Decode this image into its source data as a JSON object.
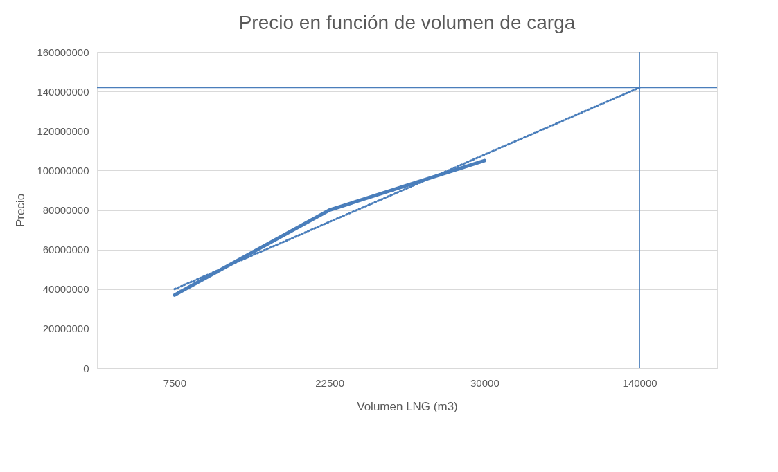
{
  "chart_data": {
    "type": "line",
    "title": "Precio en función de volumen de carga",
    "xlabel": "Volumen LNG (m3)",
    "ylabel": "Precio",
    "categories": [
      "7500",
      "22500",
      "30000",
      "140000"
    ],
    "series": [
      {
        "color": "#4a7ebb",
        "values": [
          37000000,
          80000000,
          105000000,
          null
        ],
        "line_style": "solid"
      },
      {
        "color": "#4a7ebb",
        "values": [
          40000000,
          74000000,
          108000000,
          142000000
        ],
        "line_style": "dotted"
      }
    ],
    "ylim": [
      0,
      160000000
    ],
    "yticks": [
      0,
      20000000,
      40000000,
      60000000,
      80000000,
      100000000,
      120000000,
      140000000,
      160000000
    ],
    "grid": "y",
    "marker": "none",
    "ref_lines": [
      {
        "axis": "y",
        "value": 142000000,
        "color": "#4a7ebb"
      },
      {
        "axis": "x",
        "value": "140000",
        "color": "#4a7ebb"
      }
    ]
  }
}
